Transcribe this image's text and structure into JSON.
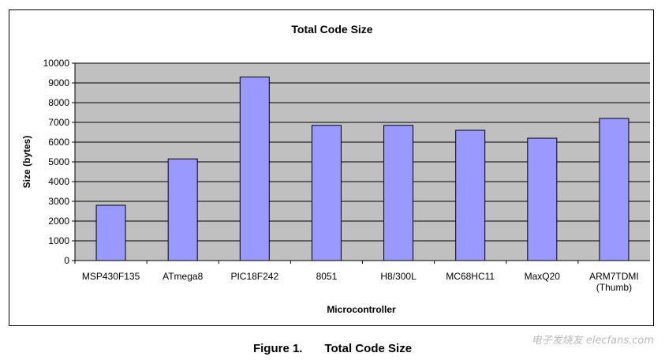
{
  "caption": {
    "figure_label": "Figure 1.",
    "figure_title": "Total Code Size"
  },
  "watermark": "电子发烧友 elecfans.com",
  "chart_data": {
    "type": "bar",
    "title": "Total Code Size",
    "xlabel": "Microcontroller",
    "ylabel": "Size (bytes)",
    "categories": [
      "MSP430F135",
      "ATmega8",
      "PIC18F242",
      "8051",
      "H8/300L",
      "MC68HC11",
      "MaxQ20",
      "ARM7TDMI (Thumb)"
    ],
    "values": [
      2800,
      5150,
      9300,
      6850,
      6850,
      6600,
      6200,
      7200
    ],
    "ylim": [
      0,
      10000
    ],
    "yticks": [
      0,
      1000,
      2000,
      3000,
      4000,
      5000,
      6000,
      7000,
      8000,
      9000,
      10000
    ],
    "grid": true,
    "legend": "none",
    "colors": {
      "bar_fill": "#9999ff",
      "bar_stroke": "#000000",
      "plot_background": "#c0c0c0",
      "grid": "#000000"
    }
  }
}
